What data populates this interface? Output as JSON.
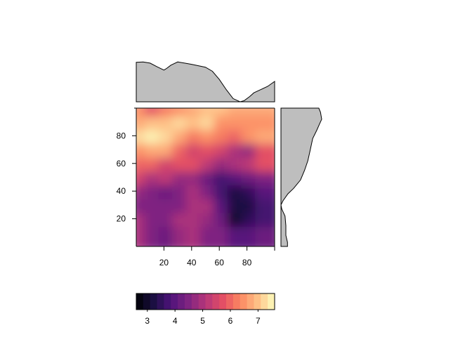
{
  "chart_data": [
    {
      "type": "heatmap",
      "title": "",
      "xlabel": "",
      "ylabel": "",
      "xlim": [
        0,
        100
      ],
      "ylim": [
        0,
        100
      ],
      "x_ticks": [
        20,
        40,
        60,
        80
      ],
      "y_ticks": [
        20,
        40,
        60,
        80
      ],
      "x_tick_labels": [
        "20",
        "40",
        "60",
        "80"
      ],
      "y_tick_labels": [
        "20",
        "40",
        "60",
        "80"
      ],
      "z_range": [
        2.6,
        7.6
      ],
      "colormap": "magma",
      "x_centers": [
        5,
        15,
        25,
        35,
        45,
        55,
        65,
        75,
        85,
        95
      ],
      "y_centers": [
        95,
        85,
        75,
        65,
        55,
        45,
        35,
        25,
        15,
        5
      ],
      "z": [
        [
          6.4,
          5.7,
          6.2,
          6.5,
          6.8,
          6.9,
          6.9,
          6.8,
          6.8,
          6.7
        ],
        [
          6.8,
          7.0,
          6.9,
          7.1,
          6.9,
          7.1,
          6.6,
          6.6,
          6.4,
          6.6
        ],
        [
          7.1,
          7.4,
          7.2,
          6.7,
          6.3,
          6.5,
          6.1,
          6.0,
          6.5,
          6.7
        ],
        [
          6.6,
          6.8,
          6.7,
          6.0,
          5.5,
          5.8,
          5.4,
          5.0,
          4.7,
          5.7
        ],
        [
          6.0,
          5.9,
          5.6,
          5.7,
          5.7,
          5.3,
          4.8,
          5.0,
          5.2,
          5.7
        ],
        [
          5.4,
          5.0,
          5.2,
          4.8,
          4.7,
          4.3,
          3.8,
          3.9,
          4.2,
          4.6
        ],
        [
          4.7,
          4.5,
          4.3,
          4.4,
          5.0,
          4.4,
          3.8,
          3.3,
          3.5,
          4.0
        ],
        [
          4.6,
          4.4,
          4.4,
          4.6,
          5.1,
          5.0,
          4.0,
          3.1,
          3.3,
          3.6
        ],
        [
          4.9,
          4.4,
          4.4,
          4.9,
          5.0,
          4.8,
          4.3,
          3.0,
          3.5,
          3.6
        ],
        [
          5.0,
          4.5,
          4.2,
          4.8,
          4.9,
          4.6,
          4.5,
          4.0,
          3.9,
          4.2
        ]
      ]
    },
    {
      "type": "area",
      "title": "",
      "xlabel": "",
      "ylabel": "",
      "note_axis": "x",
      "x": [
        0,
        5,
        10,
        15,
        20,
        22,
        25,
        30,
        35,
        40,
        50,
        55,
        60,
        65,
        70,
        75,
        78,
        82,
        85,
        90,
        95,
        100
      ],
      "values": [
        0.97,
        0.98,
        0.95,
        0.86,
        0.78,
        0.82,
        0.9,
        0.98,
        0.95,
        0.92,
        0.85,
        0.75,
        0.55,
        0.3,
        0.08,
        0.0,
        0.03,
        0.13,
        0.22,
        0.3,
        0.38,
        0.5
      ]
    },
    {
      "type": "area",
      "title": "",
      "xlabel": "",
      "ylabel": "",
      "note_axis": "y",
      "y": [
        100,
        97,
        92,
        88,
        84,
        78,
        70,
        62,
        55,
        48,
        42,
        38,
        33,
        30,
        27,
        22,
        15,
        8,
        3,
        0
      ],
      "values": [
        0.93,
        0.97,
        1.0,
        0.94,
        0.88,
        0.78,
        0.72,
        0.66,
        0.58,
        0.48,
        0.31,
        0.17,
        0.05,
        0.0,
        0.02,
        0.1,
        0.12,
        0.12,
        0.16,
        0.16
      ]
    },
    {
      "type": "bar",
      "title": "",
      "xlabel": "",
      "ylabel": "",
      "xlim": [
        2.6,
        7.6
      ],
      "ticks": [
        3,
        4,
        5,
        6,
        7
      ],
      "tick_labels": [
        "3",
        "4",
        "5",
        "6",
        "7"
      ],
      "n_bins": 20
    }
  ]
}
